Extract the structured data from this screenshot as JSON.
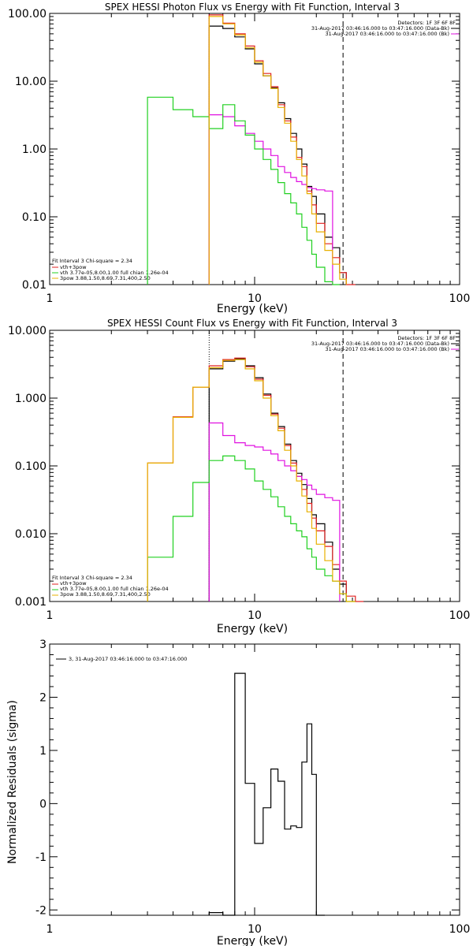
{
  "chart_data": [
    {
      "type": "line",
      "title": "SPEX HESSI Photon Flux vs Energy with Fit Function, Interval 3",
      "xlabel": "Energy (keV)",
      "ylabel": "",
      "xscale": "log",
      "yscale": "log",
      "xlim": [
        1,
        100
      ],
      "ylim": [
        0.01,
        100
      ],
      "xtick_labels": [
        "1",
        "10",
        "100"
      ],
      "ytick_labels": [
        "100.00",
        "10.00",
        "1.00",
        "0.10",
        "0.01"
      ],
      "x_edges": [
        3,
        4,
        5,
        6,
        7,
        8,
        9,
        10,
        11,
        12,
        13,
        14,
        15,
        16,
        17,
        18,
        19,
        20,
        22,
        24,
        26,
        28,
        31,
        34
      ],
      "vlines": {
        "dotted": 6,
        "dashed": 27
      },
      "header_lines": [
        "Detectors: 1F 3F 6F 8F",
        "31-Aug-2017 03:46:16.000 to 03:47:16.000 (Data-Bk)",
        "31-Aug-2017 03:46:16.000 to 03:47:16.000 (Bk)"
      ],
      "fit_text": [
        "Fit Interval 3    Chi-square = 2.34",
        "vth+3pow",
        "vth 3.77e-05,8.00,1.00   full chian 1.26e-04",
        "3pow 3.88,1.50,8.69,7.31,400,2.50"
      ],
      "series": [
        {
          "name": "31-Aug-2017 03:46:16.000 to 03:47:16.000 (Data-Bk)",
          "color": "#000000",
          "start": 6,
          "values": [
            null,
            null,
            null,
            65,
            60,
            45,
            30,
            18,
            12,
            8,
            4.8,
            2.8,
            1.7,
            1.0,
            0.6,
            0.28,
            0.2,
            0.11,
            0.05,
            0.035,
            0.015,
            null,
            null
          ]
        },
        {
          "name": "vth+3pow",
          "color": "#e02020",
          "start": 6,
          "values": [
            null,
            null,
            null,
            95,
            72,
            50,
            33,
            20,
            13,
            8.3,
            4.5,
            2.6,
            1.5,
            0.75,
            0.55,
            0.24,
            0.15,
            0.08,
            0.04,
            0.025,
            0.015,
            0.0095,
            null
          ]
        },
        {
          "name": "31-Aug-2017 03:46:16.000 to 03:47:16.000 (Bk)",
          "color": "#e010e0",
          "start": 6,
          "values": [
            null,
            null,
            null,
            3.2,
            3.0,
            2.2,
            1.7,
            1.3,
            1.0,
            0.8,
            0.55,
            0.45,
            0.38,
            0.33,
            0.3,
            0.27,
            0.26,
            0.25,
            0.24,
            null,
            null,
            null,
            null
          ]
        },
        {
          "name": "vth 3.77e-05,8.00,1.00   full chian 1.26e-04",
          "color": "#20d020",
          "start": 3,
          "values": [
            5.8,
            3.8,
            3.0,
            2.0,
            4.5,
            2.6,
            1.6,
            1.0,
            0.7,
            0.5,
            0.32,
            0.22,
            0.16,
            0.11,
            0.07,
            0.045,
            0.028,
            0.018,
            0.011,
            0.007,
            null,
            null,
            null
          ]
        },
        {
          "name": "3pow 3.88,1.50,8.69,7.31,400,2.50",
          "color": "#e8b000",
          "start": 6,
          "values": [
            null,
            null,
            null,
            90,
            70,
            48,
            31,
            19,
            12,
            7.8,
            4.1,
            2.4,
            1.3,
            0.7,
            0.4,
            0.22,
            0.11,
            0.06,
            0.032,
            0.02,
            0.012,
            null,
            null
          ]
        }
      ]
    },
    {
      "type": "line",
      "title": "SPEX HESSI Count Flux vs Energy with Fit Function, Interval 3",
      "xlabel": "Energy (keV)",
      "ylabel": "",
      "xscale": "log",
      "yscale": "log",
      "xlim": [
        1,
        100
      ],
      "ylim": [
        0.001,
        10
      ],
      "xtick_labels": [
        "1",
        "10",
        "100"
      ],
      "ytick_labels": [
        "10.000",
        "1.000",
        "0.100",
        "0.010",
        "0.001"
      ],
      "x_edges": [
        3,
        4,
        5,
        6,
        7,
        8,
        9,
        10,
        11,
        12,
        13,
        14,
        15,
        16,
        17,
        18,
        19,
        20,
        22,
        24,
        26,
        28,
        31,
        34,
        37
      ],
      "vlines": {
        "dotted": 6,
        "dashed": 27
      },
      "header_lines": [
        "Detectors: 1F 3F 6F 8F",
        "31-Aug-2017 03:46:16.000 to 03:47:16.000 (Data-Bk)",
        "31-Aug-2017 03:46:16.000 to 03:47:16.000 (Bk)"
      ],
      "fit_text": [
        "Fit Interval 3    Chi-square = 2.34",
        "vth+3pow",
        "vth 3.77e-05,8.00,1.00   full chian 1.26e-04",
        "3pow 3.88,1.50,8.69,7.31,400,2.50"
      ],
      "series": [
        {
          "name": "31-Aug-2017 03:46:16.000 to 03:47:16.000 (Data-Bk)",
          "color": "#000000",
          "start": 6,
          "values": [
            null,
            null,
            null,
            2.7,
            3.5,
            3.8,
            3.0,
            2.0,
            1.15,
            0.6,
            0.38,
            0.21,
            0.12,
            0.078,
            0.053,
            0.033,
            0.019,
            0.014,
            0.0075,
            0.003,
            0.0018,
            null,
            null,
            null
          ]
        },
        {
          "name": "vth+3pow",
          "color": "#e02020",
          "start": 3,
          "values": [
            0.11,
            0.53,
            1.45,
            3.0,
            3.7,
            3.9,
            2.9,
            1.9,
            1.1,
            0.58,
            0.36,
            0.2,
            0.11,
            0.07,
            0.045,
            0.028,
            0.017,
            0.011,
            0.0065,
            0.0035,
            0.002,
            0.0012,
            0.0009,
            null
          ]
        },
        {
          "name": "31-Aug-2017 03:46:16.000 to 03:47:16.000 (Bk)",
          "color": "#e010e0",
          "start": 6,
          "values": [
            null,
            null,
            null,
            0.43,
            0.28,
            0.22,
            0.2,
            0.19,
            0.17,
            0.15,
            0.12,
            0.1,
            0.085,
            0.07,
            0.063,
            0.052,
            0.045,
            0.038,
            0.034,
            0.031,
            null,
            null,
            null,
            null
          ]
        },
        {
          "name": "vth 3.77e-05,8.00,1.00   full chian 1.26e-04",
          "color": "#20d020",
          "start": 3,
          "values": [
            0.0045,
            0.018,
            0.057,
            0.12,
            0.14,
            0.12,
            0.09,
            0.06,
            0.045,
            0.035,
            0.025,
            0.018,
            0.014,
            0.011,
            0.009,
            0.006,
            0.0045,
            0.003,
            0.0024,
            0.002,
            0.0013,
            0.0009,
            null,
            null
          ]
        },
        {
          "name": "3pow 3.88,1.50,8.69,7.31,400,2.50",
          "color": "#e8b000",
          "start": 3,
          "values": [
            0.11,
            0.52,
            1.45,
            2.8,
            3.6,
            3.7,
            2.7,
            1.8,
            1.0,
            0.55,
            0.33,
            0.17,
            0.1,
            0.06,
            0.036,
            0.021,
            0.012,
            0.007,
            0.004,
            0.002,
            0.0013,
            0.0009,
            null,
            null
          ]
        }
      ]
    },
    {
      "type": "line",
      "title": "",
      "xlabel": "Energy (keV)",
      "ylabel": "Normalized Residuals (sigma)",
      "xscale": "log",
      "yscale": "linear",
      "xlim": [
        1,
        100
      ],
      "ylim": [
        -2.1,
        3
      ],
      "xtick_labels": [
        "1",
        "10",
        "100"
      ],
      "ytick_labels": [
        "3",
        "2",
        "1",
        "0",
        "-1",
        "-2"
      ],
      "legend": "3, 31-Aug-2017 03:46:16.000 to 03:47:16.000",
      "x_edges": [
        6,
        7,
        8,
        9,
        10,
        11,
        12,
        13,
        14,
        15,
        16,
        17,
        18,
        19,
        20,
        22,
        24,
        26,
        28
      ],
      "series": [
        {
          "name": "3, 31-Aug-2017 03:46:16.000 to 03:47:16.000",
          "color": "#000000",
          "values": [
            -2.05,
            -2.1,
            2.45,
            0.38,
            -0.75,
            -0.08,
            0.65,
            0.42,
            -0.48,
            -0.42,
            -0.45,
            0.78,
            1.5,
            0.55,
            -2.1
          ]
        }
      ]
    }
  ]
}
